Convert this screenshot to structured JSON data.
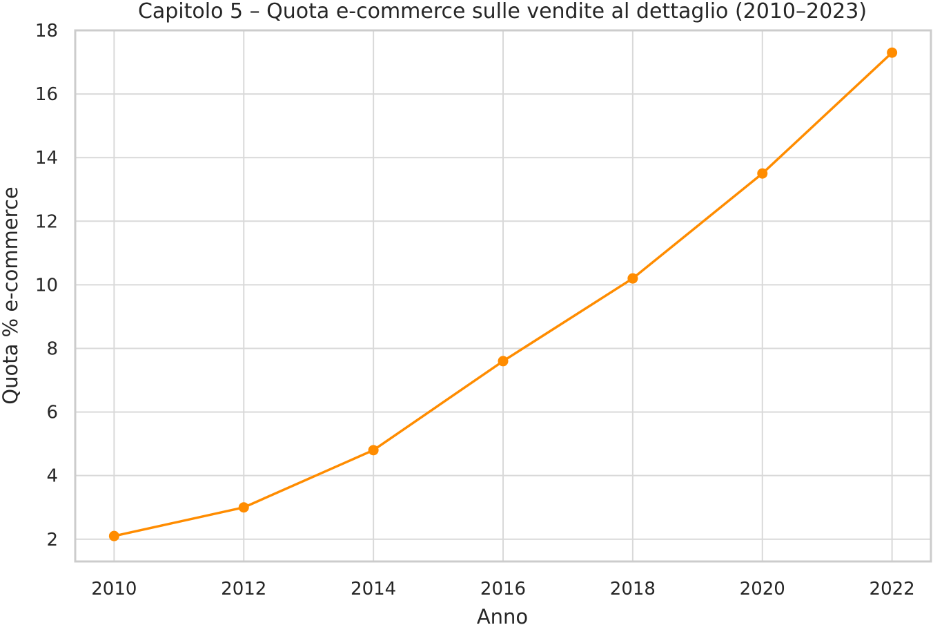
{
  "chart_data": {
    "type": "line",
    "title": "Capitolo 5 – Quota e-commerce sulle vendite al dettaglio (2010–2023)",
    "xlabel": "Anno",
    "ylabel": "Quota % e-commerce",
    "x": [
      2010,
      2012,
      2014,
      2016,
      2018,
      2020,
      2022
    ],
    "x_ticks": [
      "2010",
      "2012",
      "2014",
      "2016",
      "2018",
      "2020",
      "2022"
    ],
    "y_ticks": [
      "2",
      "4",
      "6",
      "8",
      "10",
      "12",
      "14",
      "16",
      "18"
    ],
    "xlim": [
      2009.4,
      2022.6
    ],
    "ylim": [
      1.3,
      18
    ],
    "series": [
      {
        "values": [
          2.1,
          3.0,
          4.8,
          7.6,
          10.2,
          13.5,
          17.3
        ],
        "color": "#ff8c00"
      }
    ],
    "grid": true,
    "legend": "none",
    "style": {
      "line_color": "#ff8c00",
      "grid_color": "#d9d9d9",
      "spine_color": "#cccccc",
      "text_color": "#262626"
    }
  }
}
